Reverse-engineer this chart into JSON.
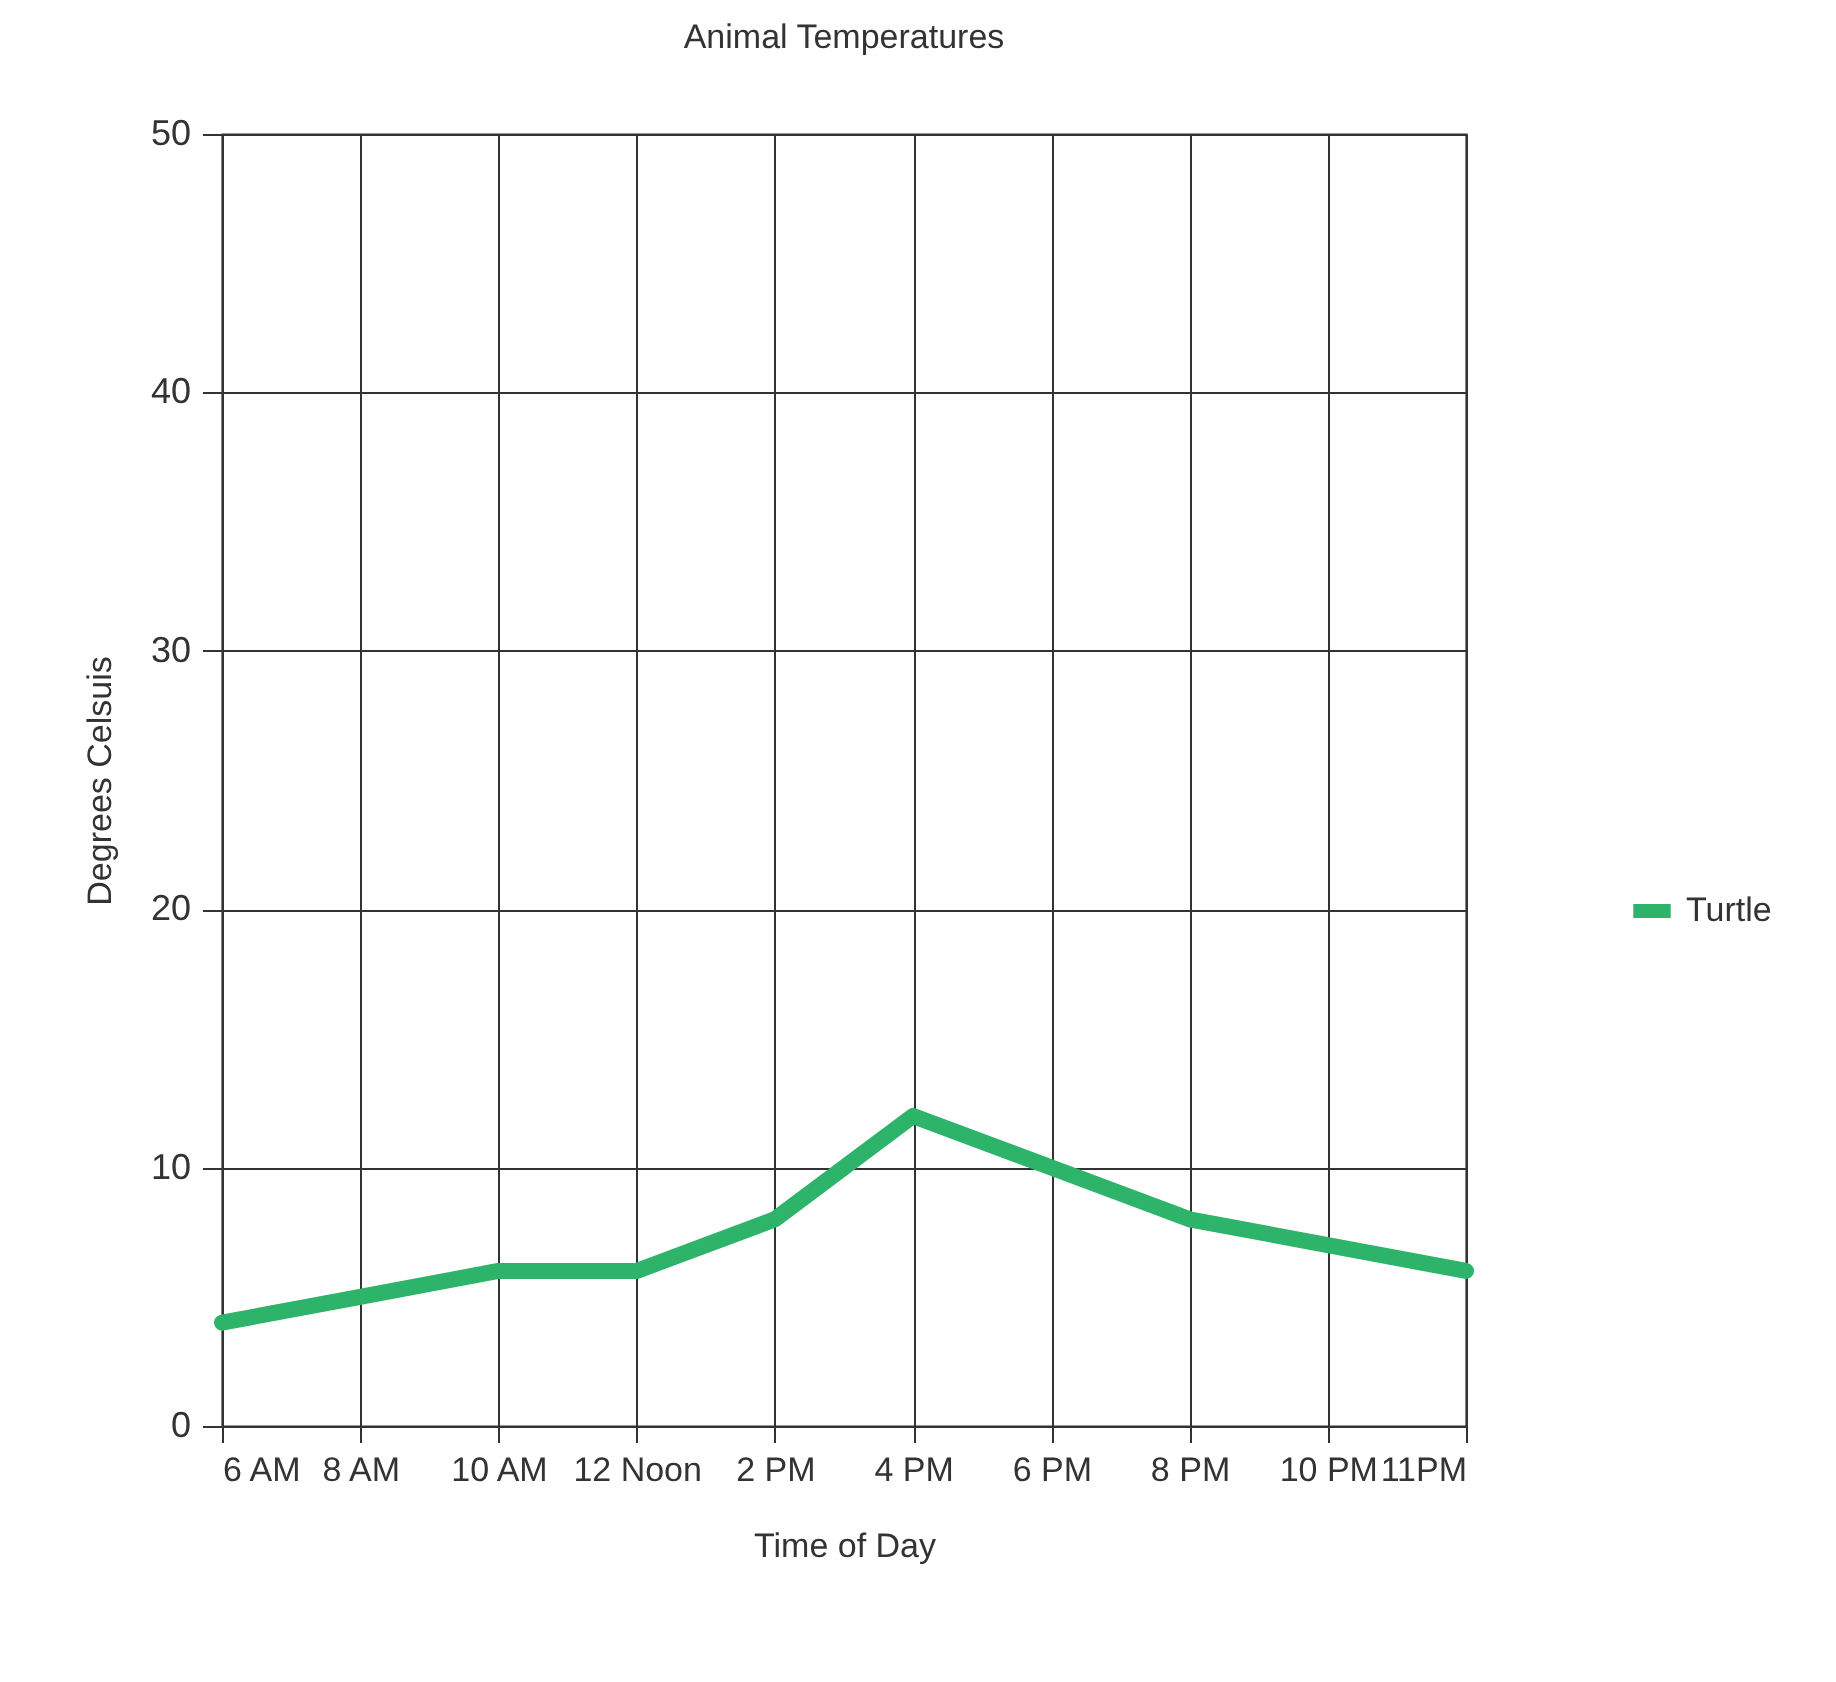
{
  "chart_data": {
    "type": "line",
    "title": "Animal Temperatures",
    "xlabel": "Time of Day",
    "ylabel": "Degrees Celsuis",
    "categories": [
      "6 AM",
      "8 AM",
      "10 AM",
      "12 Noon",
      "2 PM",
      "4 PM",
      "6 PM",
      "8 PM",
      "10 PM",
      "11PM"
    ],
    "series": [
      {
        "name": "Turtle",
        "color": "#2eb36a",
        "values": [
          4,
          5,
          6,
          6,
          8,
          12,
          10,
          8,
          7,
          6
        ]
      }
    ],
    "ylim": [
      0,
      50
    ],
    "yticks": [
      0,
      10,
      20,
      30,
      40,
      50
    ],
    "grid": true,
    "legend": "right",
    "marker": "none",
    "line_style": "solid"
  }
}
